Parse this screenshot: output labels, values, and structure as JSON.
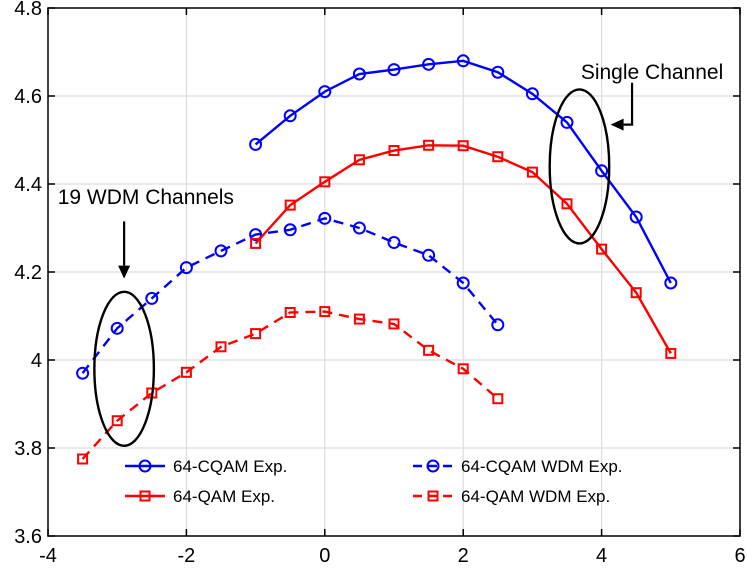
{
  "chart_data": {
    "type": "line",
    "title": "",
    "xlabel": "",
    "ylabel": "",
    "xlim": [
      -4,
      6
    ],
    "ylim": [
      3.6,
      4.8
    ],
    "xticks": [
      "-4",
      "-2",
      "0",
      "2",
      "4",
      "6"
    ],
    "yticks": [
      "3.6",
      "3.8",
      "4",
      "4.2",
      "4.4",
      "4.6",
      "4.8"
    ],
    "grid": true,
    "legend_position": "bottom",
    "series": [
      {
        "name": "64-CQAM Exp.",
        "color": "#0000ff",
        "marker": "circle",
        "dashed": false,
        "x": [
          -1,
          -0.5,
          0,
          0.5,
          1,
          1.5,
          2,
          2.5,
          3,
          3.5,
          4,
          4.5,
          5
        ],
        "y": [
          4.49,
          4.555,
          4.61,
          4.65,
          4.66,
          4.672,
          4.68,
          4.654,
          4.605,
          4.54,
          4.43,
          4.325,
          4.175
        ]
      },
      {
        "name": "64-CQAM WDM Exp.",
        "color": "#0000ff",
        "marker": "circle",
        "dashed": true,
        "x": [
          -3.5,
          -3,
          -2.5,
          -2,
          -1.5,
          -1,
          -0.5,
          0,
          0.5,
          1,
          1.5,
          2,
          2.5
        ],
        "y": [
          3.97,
          4.072,
          4.14,
          4.21,
          4.248,
          4.285,
          4.296,
          4.322,
          4.3,
          4.267,
          4.238,
          4.175,
          4.08
        ]
      },
      {
        "name": "64-QAM Exp.",
        "color": "#ff0000",
        "marker": "square",
        "dashed": false,
        "x": [
          -1,
          -0.5,
          0,
          0.5,
          1,
          1.5,
          2,
          2.5,
          3,
          3.5,
          4,
          4.5,
          5
        ],
        "y": [
          4.265,
          4.352,
          4.405,
          4.455,
          4.476,
          4.488,
          4.487,
          4.462,
          4.427,
          4.355,
          4.252,
          4.153,
          4.015
        ]
      },
      {
        "name": "64-QAM WDM Exp.",
        "color": "#ff0000",
        "marker": "square",
        "dashed": true,
        "x": [
          -3.5,
          -3,
          -2.5,
          -2,
          -1.5,
          -1,
          -0.5,
          0,
          0.5,
          1,
          1.5,
          2,
          2.5
        ],
        "y": [
          3.775,
          3.862,
          3.925,
          3.972,
          4.03,
          4.06,
          4.108,
          4.11,
          4.093,
          4.082,
          4.022,
          3.98,
          3.912
        ]
      }
    ],
    "annotations": [
      {
        "id": "single",
        "text": "Single Channel",
        "ellipse": {
          "cx": 3.68,
          "cy": 4.44,
          "rx": 0.43,
          "ry": 0.175
        },
        "label_at": [
          3.7,
          4.655
        ],
        "arrow": {
          "from": [
            4.44,
            4.63
          ],
          "via": [
            4.44,
            4.535
          ],
          "to": [
            4.13,
            4.535
          ]
        }
      },
      {
        "id": "wdm",
        "text": "19 WDM Channels",
        "ellipse": {
          "cx": -2.9,
          "cy": 3.98,
          "rx": 0.43,
          "ry": 0.175
        },
        "label_at": [
          -3.86,
          4.37
        ],
        "arrow": {
          "from": [
            -2.9,
            4.315
          ],
          "to": [
            -2.9,
            4.185
          ]
        }
      }
    ]
  }
}
